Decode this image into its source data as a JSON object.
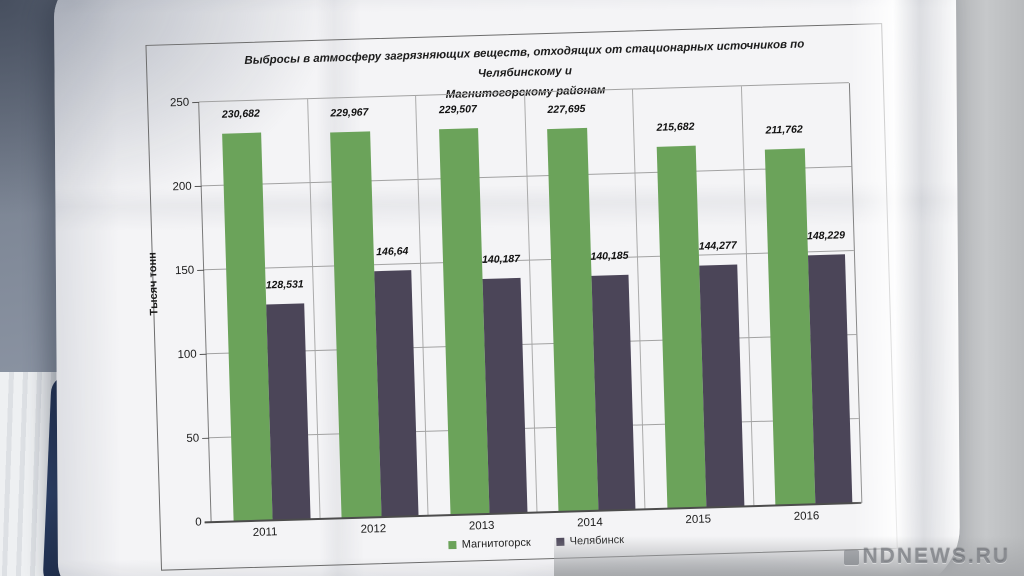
{
  "photo": {
    "watermark": "NDNEWS.RU"
  },
  "chart_data": {
    "type": "bar",
    "title": "Выбросы в атмосферу загрязняющих веществ, отходящих от стационарных источников  по Челябинскому и Магнитогорскому районам",
    "title_line1": "Выбросы в атмосферу загрязняющих веществ, отходящих от стационарных источников  по Челябинскому и",
    "title_line2": "Магнитогорскому районам",
    "ylabel": "Тысяч тонн",
    "xlabel": "",
    "ylim": [
      0,
      250
    ],
    "yticks": [
      0,
      50,
      100,
      150,
      200,
      250
    ],
    "grid": "horizontal gridlines plus vertical category separators",
    "legend_position": "bottom-center",
    "categories": [
      "2011",
      "2012",
      "2013",
      "2014",
      "2015",
      "2016"
    ],
    "series": [
      {
        "name": "Магнитогорск",
        "color": "#6ba35a",
        "values": [
          230.682,
          229.967,
          229.507,
          227.695,
          215.682,
          211.762
        ],
        "labels": [
          "230,682",
          "229,967",
          "229,507",
          "227,695",
          "215,682",
          "211,762"
        ]
      },
      {
        "name": "Челябинск",
        "color": "#4b4558",
        "values": [
          128.531,
          146.64,
          140.187,
          140.185,
          144.277,
          148.229
        ],
        "labels": [
          "128,531",
          "146,64",
          "140,187",
          "140,185",
          "144,277",
          "148,229"
        ]
      }
    ]
  }
}
